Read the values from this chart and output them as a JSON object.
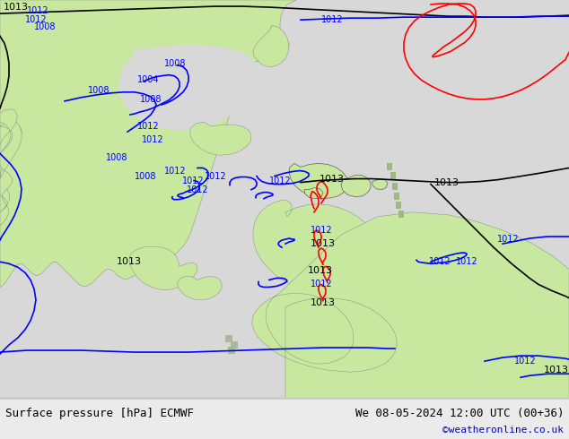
{
  "bottom_left_text": "Surface pressure [hPa] ECMWF",
  "bottom_right_text": "We 08-05-2024 12:00 UTC (00+36)",
  "copyright_text": "©weatheronline.co.uk",
  "bg_color": "#e0e0e0",
  "land_color": "#c8e8a0",
  "sea_color": "#d8d8d8",
  "bottom_bar_color": "#ebebeb",
  "bottom_text_color": "#000000",
  "copyright_color": "#0000cc",
  "contour_blue": "#0000ff",
  "contour_black": "#000000",
  "contour_red": "#ff0000",
  "figsize": [
    6.34,
    4.9
  ],
  "dpi": 100
}
